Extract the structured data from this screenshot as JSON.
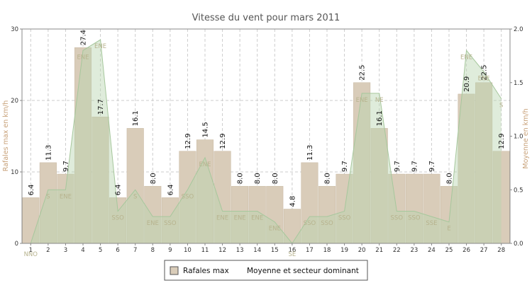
{
  "chart_data": {
    "type": "bar",
    "title": "Vitesse du vent pour mars 2011",
    "ylabel": "Rafales max en km/h",
    "ylabel_right": "Moyenne en km/h",
    "ylim": [
      0,
      30
    ],
    "yticks": [
      "0",
      "10",
      "20",
      "30"
    ],
    "ylim_right": [
      0,
      2
    ],
    "yticks_right": [
      "0.0",
      "0.5",
      "1.0",
      "1.5",
      "2.0"
    ],
    "grid": true,
    "legend_position": "bottom",
    "categories": [
      "1",
      "2",
      "3",
      "4",
      "5",
      "6",
      "7",
      "8",
      "9",
      "10",
      "11",
      "12",
      "13",
      "14",
      "15",
      "16",
      "17",
      "18",
      "19",
      "20",
      "21",
      "22",
      "23",
      "24",
      "25",
      "26",
      "27",
      "28"
    ],
    "series": [
      {
        "name": "Rafales max",
        "type": "bar",
        "color": "#d9ccb9",
        "values": [
          6.4,
          11.3,
          9.7,
          27.4,
          17.7,
          6.4,
          16.1,
          8.0,
          6.4,
          12.9,
          14.5,
          12.9,
          8.0,
          8.0,
          8.0,
          4.8,
          11.3,
          8.0,
          9.7,
          22.5,
          16.1,
          9.7,
          9.7,
          9.7,
          8.0,
          20.9,
          22.5,
          12.9
        ],
        "labels": [
          "6.4",
          "11.3",
          "9.7",
          "27.4",
          "17.7",
          "6.4",
          "16.1",
          "8.0",
          "6.4",
          "12.9",
          "14.5",
          "12.9",
          "8.0",
          "8.0",
          "8.0",
          "4.8",
          "11.3",
          "8.0",
          "9.7",
          "22.5",
          "16.1",
          "9.7",
          "9.7",
          "9.7",
          "8.0",
          "20.9",
          "22.5",
          "12.9"
        ]
      },
      {
        "name": "Moyenne et secteur dominant",
        "type": "area",
        "color": "#b8d4b0",
        "values": [
          0.0,
          0.5,
          0.5,
          1.8,
          1.9,
          0.3,
          0.5,
          0.25,
          0.25,
          0.5,
          0.8,
          0.3,
          0.3,
          0.3,
          0.2,
          0.0,
          0.25,
          0.25,
          0.3,
          1.4,
          1.4,
          0.3,
          0.3,
          0.25,
          0.2,
          1.8,
          1.6,
          1.35
        ],
        "directions": [
          "NNO",
          "S",
          "ENE",
          "ENE",
          "ENE",
          "SSO",
          "S",
          "ENE",
          "SSO",
          "SSO",
          "ENE",
          "ENE",
          "ENE",
          "ENE",
          "ENE",
          "SE",
          "SSO",
          "SSO",
          "SSO",
          "ENE",
          "NE",
          "SSO",
          "SSO",
          "SSE",
          "E",
          "ENE",
          "ENE",
          "S"
        ]
      }
    ]
  },
  "colors": {
    "bar": "#d9ccb9",
    "bar_stroke": "#c8b8a2",
    "area_fill": "#b8d4b0",
    "area_stroke": "#a6c79c",
    "grid": "#cccccc",
    "axis": "#888888"
  }
}
